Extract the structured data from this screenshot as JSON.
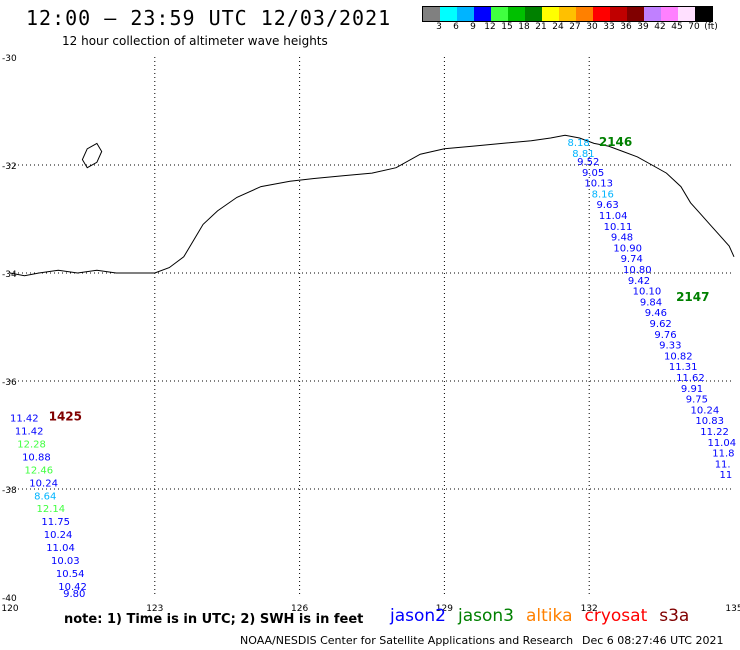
{
  "header": {
    "title": "12:00 – 23:59 UTC 12/03/2021",
    "subtitle": "12 hour collection of altimeter wave heights"
  },
  "legend": {
    "colors": [
      "#808080",
      "#00ffff",
      "#00b4ff",
      "#0000ff",
      "#40ff40",
      "#00c000",
      "#008000",
      "#ffff00",
      "#ffc000",
      "#ff8000",
      "#ff0000",
      "#c00000",
      "#800000",
      "#c080ff",
      "#ff80ff",
      "#ffe0ff",
      "#000000"
    ],
    "labels": [
      "3",
      "6",
      "9",
      "12",
      "15",
      "18",
      "21",
      "24",
      "27",
      "30",
      "33",
      "36",
      "39",
      "42",
      "45",
      "70",
      "(ft)"
    ]
  },
  "map": {
    "lon_range": [
      120,
      135
    ],
    "lat_range": [
      -40,
      -30
    ],
    "lon_ticks": [
      "120",
      "123",
      "126",
      "129",
      "132",
      "135"
    ],
    "lat_ticks": [
      "-30",
      "-32",
      "-34",
      "-36",
      "-38",
      "-40"
    ],
    "grid": "dotted"
  },
  "passes": [
    {
      "id": "2146",
      "label_color": "#008000",
      "label_pos": [
        132.2,
        -31.65
      ]
    },
    {
      "id": "2147",
      "label_color": "#008000",
      "label_pos": [
        133.8,
        -34.52
      ]
    },
    {
      "id": "1425",
      "label_color": "#800000",
      "label_pos": [
        120.8,
        -36.73
      ]
    }
  ],
  "observations": [
    {
      "lon": 131.55,
      "lat": -31.65,
      "swh": "8.18",
      "color": "#00b4ff"
    },
    {
      "lon": 131.65,
      "lat": -31.85,
      "swh": "8.81",
      "color": "#00b4ff"
    },
    {
      "lon": 131.75,
      "lat": -32.0,
      "swh": "9.52",
      "color": "#0000ff"
    },
    {
      "lon": 131.85,
      "lat": -32.2,
      "swh": "9.05",
      "color": "#0000ff"
    },
    {
      "lon": 131.9,
      "lat": -32.4,
      "swh": "10.13",
      "color": "#0000ff"
    },
    {
      "lon": 132.05,
      "lat": -32.6,
      "swh": "8.16",
      "color": "#00b4ff"
    },
    {
      "lon": 132.15,
      "lat": -32.8,
      "swh": "9.63",
      "color": "#0000ff"
    },
    {
      "lon": 132.2,
      "lat": -33.0,
      "swh": "11.04",
      "color": "#0000ff"
    },
    {
      "lon": 132.3,
      "lat": -33.2,
      "swh": "10.11",
      "color": "#0000ff"
    },
    {
      "lon": 132.45,
      "lat": -33.4,
      "swh": "9.48",
      "color": "#0000ff"
    },
    {
      "lon": 132.5,
      "lat": -33.6,
      "swh": "10.90",
      "color": "#0000ff"
    },
    {
      "lon": 132.65,
      "lat": -33.8,
      "swh": "9.74",
      "color": "#0000ff"
    },
    {
      "lon": 132.7,
      "lat": -34.0,
      "swh": "10.80",
      "color": "#0000ff"
    },
    {
      "lon": 132.8,
      "lat": -34.2,
      "swh": "9.42",
      "color": "#0000ff"
    },
    {
      "lon": 132.9,
      "lat": -34.4,
      "swh": "10.10",
      "color": "#0000ff"
    },
    {
      "lon": 133.05,
      "lat": -34.6,
      "swh": "9.84",
      "color": "#0000ff"
    },
    {
      "lon": 133.15,
      "lat": -34.8,
      "swh": "9.46",
      "color": "#0000ff"
    },
    {
      "lon": 133.25,
      "lat": -35.0,
      "swh": "9.62",
      "color": "#0000ff"
    },
    {
      "lon": 133.35,
      "lat": -35.2,
      "swh": "9.76",
      "color": "#0000ff"
    },
    {
      "lon": 133.45,
      "lat": -35.4,
      "swh": "9.33",
      "color": "#0000ff"
    },
    {
      "lon": 133.55,
      "lat": -35.6,
      "swh": "10.82",
      "color": "#0000ff"
    },
    {
      "lon": 133.65,
      "lat": -35.8,
      "swh": "11.31",
      "color": "#0000ff"
    },
    {
      "lon": 133.8,
      "lat": -36.0,
      "swh": "11.62",
      "color": "#0000ff"
    },
    {
      "lon": 133.9,
      "lat": -36.2,
      "swh": "9.91",
      "color": "#0000ff"
    },
    {
      "lon": 134.0,
      "lat": -36.4,
      "swh": "9.75",
      "color": "#0000ff"
    },
    {
      "lon": 134.1,
      "lat": -36.6,
      "swh": "10.24",
      "color": "#0000ff"
    },
    {
      "lon": 134.2,
      "lat": -36.8,
      "swh": "10.83",
      "color": "#0000ff"
    },
    {
      "lon": 134.3,
      "lat": -37.0,
      "swh": "11.22",
      "color": "#0000ff"
    },
    {
      "lon": 134.45,
      "lat": -37.2,
      "swh": "11.04",
      "color": "#0000ff"
    },
    {
      "lon": 134.55,
      "lat": -37.4,
      "swh": "11.8",
      "color": "#0000ff"
    },
    {
      "lon": 134.6,
      "lat": -37.6,
      "swh": "11.",
      "color": "#0000ff"
    },
    {
      "lon": 134.7,
      "lat": -37.8,
      "swh": "11",
      "color": "#0000ff"
    },
    {
      "lon": 120.0,
      "lat": -36.75,
      "swh": "11.42",
      "color": "#0000ff"
    },
    {
      "lon": 120.1,
      "lat": -36.99,
      "swh": "11.42",
      "color": "#0000ff"
    },
    {
      "lon": 120.15,
      "lat": -37.23,
      "swh": "12.28",
      "color": "#40ff40"
    },
    {
      "lon": 120.25,
      "lat": -37.47,
      "swh": "10.88",
      "color": "#0000ff"
    },
    {
      "lon": 120.3,
      "lat": -37.71,
      "swh": "12.46",
      "color": "#40ff40"
    },
    {
      "lon": 120.4,
      "lat": -37.95,
      "swh": "10.24",
      "color": "#0000ff"
    },
    {
      "lon": 120.5,
      "lat": -38.19,
      "swh": "8.64",
      "color": "#00b4ff"
    },
    {
      "lon": 120.55,
      "lat": -38.43,
      "swh": "12.14",
      "color": "#40ff40"
    },
    {
      "lon": 120.65,
      "lat": -38.67,
      "swh": "11.75",
      "color": "#0000ff"
    },
    {
      "lon": 120.7,
      "lat": -38.91,
      "swh": "10.24",
      "color": "#0000ff"
    },
    {
      "lon": 120.75,
      "lat": -39.15,
      "swh": "11.04",
      "color": "#0000ff"
    },
    {
      "lon": 120.85,
      "lat": -39.39,
      "swh": "10.03",
      "color": "#0000ff"
    },
    {
      "lon": 120.95,
      "lat": -39.63,
      "swh": "10.54",
      "color": "#0000ff"
    },
    {
      "lon": 121.0,
      "lat": -39.87,
      "swh": "10.42",
      "color": "#0000ff"
    },
    {
      "lon": 121.1,
      "lat": -40.0,
      "swh": "9.80",
      "color": "#0000ff"
    }
  ],
  "coast_points": [
    [
      120.0,
      -34.0
    ],
    [
      120.3,
      -34.05
    ],
    [
      120.6,
      -34.0
    ],
    [
      121.0,
      -33.95
    ],
    [
      121.4,
      -34.0
    ],
    [
      121.8,
      -33.95
    ],
    [
      122.2,
      -34.0
    ],
    [
      122.6,
      -34.0
    ],
    [
      123.0,
      -34.0
    ],
    [
      123.3,
      -33.9
    ],
    [
      123.6,
      -33.7
    ],
    [
      123.8,
      -33.4
    ],
    [
      124.0,
      -33.1
    ],
    [
      124.3,
      -32.85
    ],
    [
      124.7,
      -32.6
    ],
    [
      125.2,
      -32.4
    ],
    [
      125.8,
      -32.3
    ],
    [
      126.3,
      -32.25
    ],
    [
      126.9,
      -32.2
    ],
    [
      127.5,
      -32.15
    ],
    [
      128.0,
      -32.05
    ],
    [
      128.5,
      -31.8
    ],
    [
      129.0,
      -31.7
    ],
    [
      129.6,
      -31.65
    ],
    [
      130.2,
      -31.6
    ],
    [
      130.8,
      -31.55
    ],
    [
      131.2,
      -31.5
    ],
    [
      131.5,
      -31.45
    ],
    [
      131.8,
      -31.5
    ],
    [
      132.1,
      -31.6
    ],
    [
      132.4,
      -31.65
    ],
    [
      132.7,
      -31.75
    ],
    [
      133.0,
      -31.85
    ],
    [
      133.3,
      -32.0
    ],
    [
      133.6,
      -32.15
    ],
    [
      133.9,
      -32.4
    ],
    [
      134.1,
      -32.7
    ],
    [
      134.3,
      -32.9
    ],
    [
      134.5,
      -33.1
    ],
    [
      134.7,
      -33.3
    ],
    [
      134.9,
      -33.5
    ],
    [
      135.0,
      -33.7
    ]
  ],
  "island_points": [
    [
      121.5,
      -31.9
    ],
    [
      121.6,
      -31.7
    ],
    [
      121.8,
      -31.6
    ],
    [
      121.9,
      -31.75
    ],
    [
      121.8,
      -31.95
    ],
    [
      121.6,
      -32.05
    ],
    [
      121.5,
      -31.9
    ]
  ],
  "footer": {
    "note": "note: 1) Time is in UTC; 2) SWH is in feet",
    "satellites": [
      {
        "name": "jason2",
        "color": "#0000ff"
      },
      {
        "name": "jason3",
        "color": "#008000"
      },
      {
        "name": "altika",
        "color": "#ff8000"
      },
      {
        "name": "cryosat",
        "color": "#ff0000"
      },
      {
        "name": "s3a",
        "color": "#800000"
      }
    ],
    "credit": "NOAA/NESDIS Center for Satellite Applications and Research",
    "timestamp": "Dec  6 08:27:46 UTC 2021"
  }
}
